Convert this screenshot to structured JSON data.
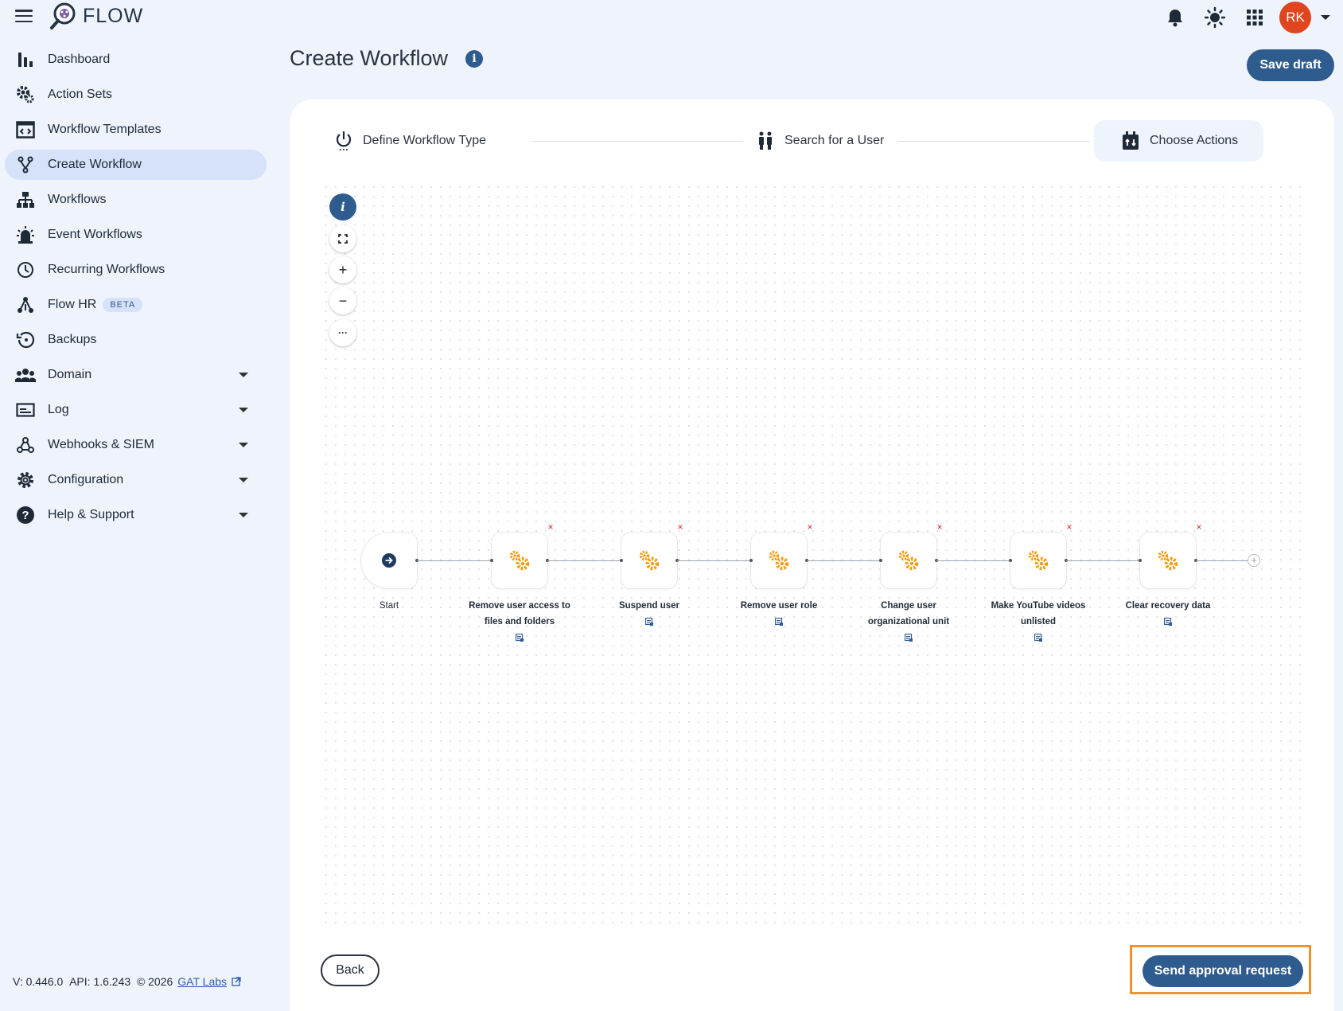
{
  "app": {
    "name": "FLOW"
  },
  "header": {
    "icons": [
      "notifications-icon",
      "theme-toggle-icon",
      "apps-grid-icon"
    ],
    "avatar_initials": "RK"
  },
  "sidebar": {
    "items": [
      {
        "label": "Dashboard",
        "icon": "bar-chart-icon"
      },
      {
        "label": "Action Sets",
        "icon": "gears-icon"
      },
      {
        "label": "Workflow Templates",
        "icon": "template-icon"
      },
      {
        "label": "Create Workflow",
        "icon": "fork-icon",
        "active": true
      },
      {
        "label": "Workflows",
        "icon": "hierarchy-icon"
      },
      {
        "label": "Event Workflows",
        "icon": "alarm-icon"
      },
      {
        "label": "Recurring Workflows",
        "icon": "clock-icon"
      },
      {
        "label": "Flow HR",
        "icon": "network-icon",
        "badge": "BETA"
      },
      {
        "label": "Backups",
        "icon": "restore-icon"
      },
      {
        "label": "Domain",
        "icon": "people-icon",
        "expandable": true
      },
      {
        "label": "Log",
        "icon": "log-icon",
        "expandable": true
      },
      {
        "label": "Webhooks & SIEM",
        "icon": "webhook-icon",
        "expandable": true
      },
      {
        "label": "Configuration",
        "icon": "settings-icon",
        "expandable": true
      },
      {
        "label": "Help & Support",
        "icon": "help-icon",
        "expandable": true
      }
    ]
  },
  "footer": {
    "version": "V: 0.446.0",
    "api": "API: 1.6.243",
    "copyright": "© 2026",
    "company": "GAT Labs"
  },
  "page": {
    "title": "Create Workflow",
    "save_draft_label": "Save draft"
  },
  "stepper": {
    "steps": [
      {
        "label": "Define Workflow Type",
        "icon": "power-icon"
      },
      {
        "label": "Search for a User",
        "icon": "users-icon"
      },
      {
        "label": "Choose Actions",
        "icon": "actions-icon",
        "active": true
      }
    ]
  },
  "canvas": {
    "controls": [
      "info-icon",
      "fit-view-icon",
      "zoom-in-icon",
      "zoom-out-icon",
      "more-icon"
    ],
    "control_glyphs": {
      "zoom_in": "+",
      "zoom_out": "−",
      "more": "···",
      "info": "i"
    },
    "start_label": "Start",
    "nodes": [
      {
        "label": "Remove user access to files and folders"
      },
      {
        "label": "Suspend user"
      },
      {
        "label": "Remove user role"
      },
      {
        "label": "Change user organizational unit"
      },
      {
        "label": "Make YouTube videos unlisted"
      },
      {
        "label": "Clear recovery data"
      }
    ],
    "remove_glyph": "×",
    "accent_color": "#f59a0f"
  },
  "actions": {
    "back_label": "Back",
    "send_label": "Send approval request"
  },
  "colors": {
    "primary": "#2f5c8f",
    "avatar": "#e0451f",
    "highlight": "#f0912e",
    "remove": "#e0202b"
  }
}
